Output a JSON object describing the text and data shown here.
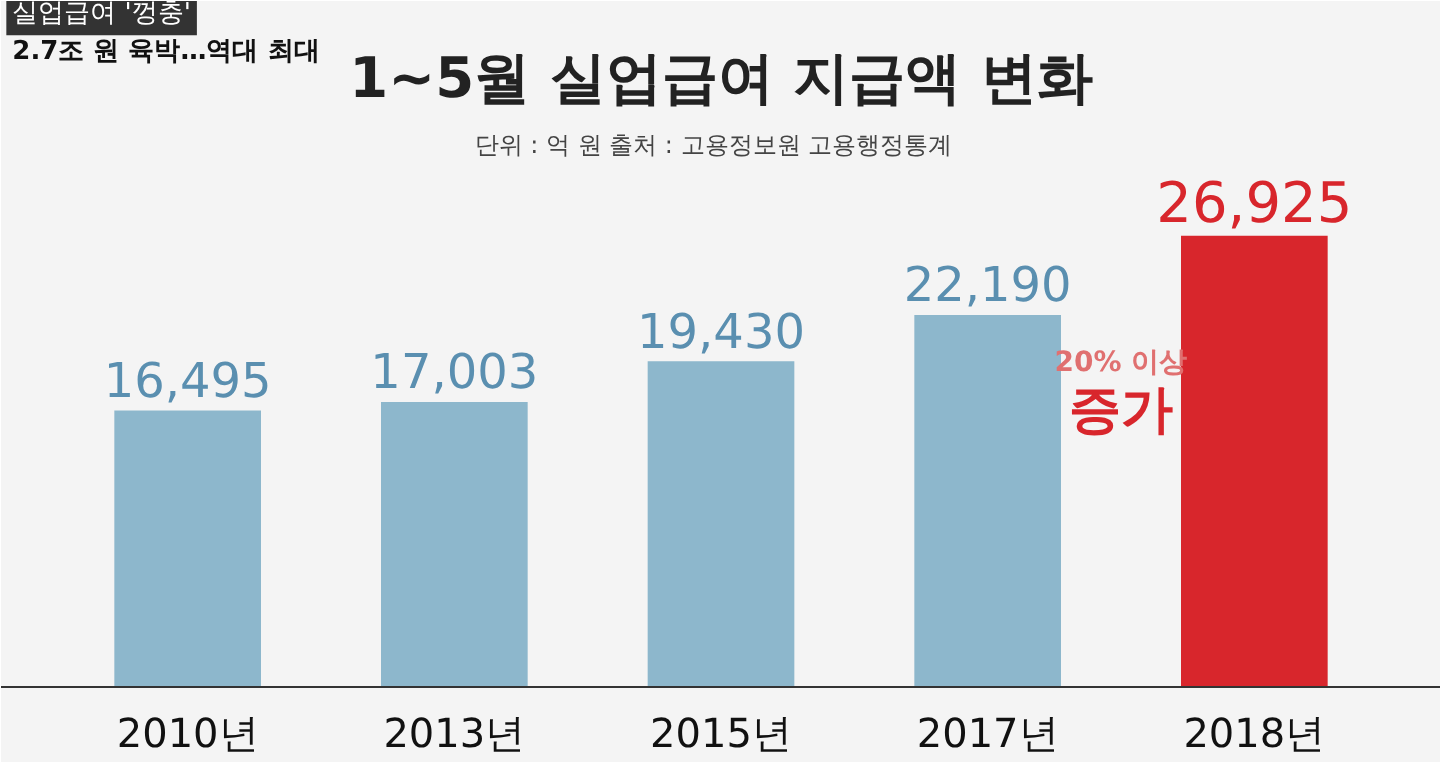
{
  "chart_data": {
    "type": "bar",
    "title": "1~5월 실업급여 지급액 변화",
    "subtitle": "단위 : 억 원   출처 : 고용정보원 고용행정통계",
    "categories": [
      "2010년",
      "2013년",
      "2015년",
      "2017년",
      "2018년"
    ],
    "values": [
      16495,
      17003,
      19430,
      22190,
      26925
    ],
    "colors": [
      "#8db7cc",
      "#8db7cc",
      "#8db7cc",
      "#8db7cc",
      "#d8262c"
    ],
    "value_labels": [
      "16,495",
      "17,003",
      "19,430",
      "22,190",
      "26,925"
    ],
    "annotations": [
      "실업급여 '껑충'",
      "2.7조 원 육박…역대 최대",
      "20% 이상",
      "증가"
    ],
    "grid": false
  }
}
